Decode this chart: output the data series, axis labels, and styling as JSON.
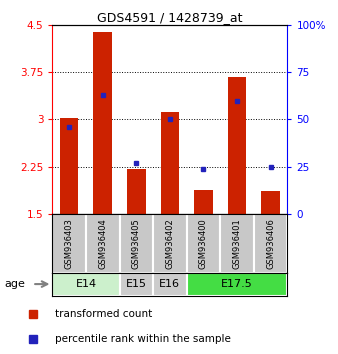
{
  "title": "GDS4591 / 1428739_at",
  "samples": [
    "GSM936403",
    "GSM936404",
    "GSM936405",
    "GSM936402",
    "GSM936400",
    "GSM936401",
    "GSM936406"
  ],
  "transformed_counts": [
    3.02,
    4.38,
    2.21,
    3.12,
    1.88,
    3.68,
    1.87
  ],
  "percentile_ranks": [
    46,
    63,
    27,
    50,
    24,
    60,
    25
  ],
  "age_groups": [
    {
      "label": "E14",
      "start": 0,
      "end": 2,
      "color": "#ccf0cc"
    },
    {
      "label": "E15",
      "start": 2,
      "end": 3,
      "color": "#cccccc"
    },
    {
      "label": "E16",
      "start": 3,
      "end": 4,
      "color": "#cccccc"
    },
    {
      "label": "E17.5",
      "start": 4,
      "end": 7,
      "color": "#44dd44"
    }
  ],
  "ylim_left": [
    1.5,
    4.5
  ],
  "ylim_right": [
    0,
    100
  ],
  "yticks_left": [
    1.5,
    2.25,
    3.0,
    3.75,
    4.5
  ],
  "yticks_right": [
    0,
    25,
    50,
    75,
    100
  ],
  "bar_color": "#cc2200",
  "dot_color": "#2222bb",
  "bar_bottom": 1.5,
  "bar_width": 0.55,
  "legend_red_label": "transformed count",
  "legend_blue_label": "percentile rank within the sample"
}
